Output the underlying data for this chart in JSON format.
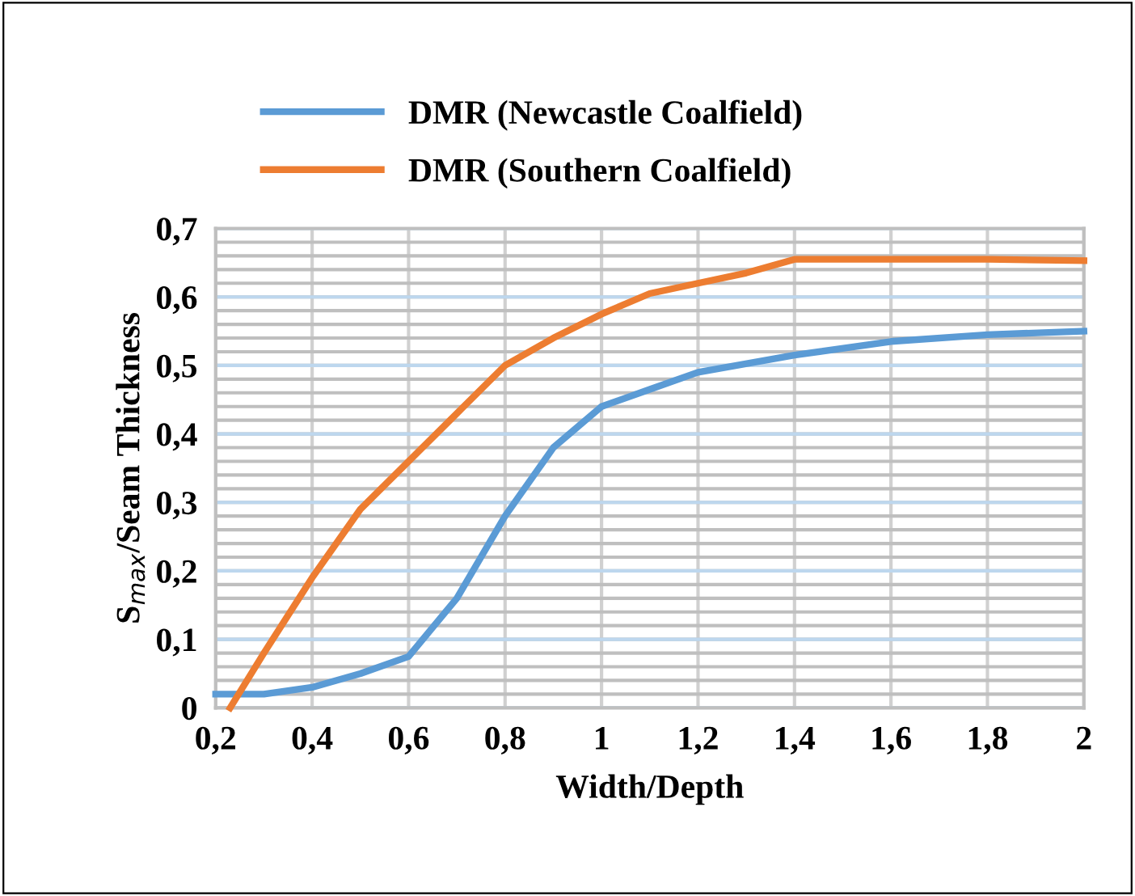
{
  "chart_data": {
    "type": "line",
    "xlabel": "Width/Depth",
    "ylabel": "S$_{max}$/Seam Thickness",
    "legend": "top",
    "grid": true,
    "xlim": [
      0.2,
      2.0
    ],
    "xticks": [
      {
        "value": 0.2,
        "label": "0,2"
      },
      {
        "value": 0.4,
        "label": "0,4"
      },
      {
        "value": 0.6,
        "label": "0,6"
      },
      {
        "value": 0.8,
        "label": "0,8"
      },
      {
        "value": 1.0,
        "label": "1"
      },
      {
        "value": 1.2,
        "label": "1,2"
      },
      {
        "value": 1.4,
        "label": "1,4"
      },
      {
        "value": 1.6,
        "label": "1,6"
      },
      {
        "value": 1.8,
        "label": "1,8"
      },
      {
        "value": 2.0,
        "label": "2"
      }
    ],
    "ylim": [
      0,
      0.7
    ],
    "yticks": [
      {
        "value": 0,
        "label": "0"
      },
      {
        "value": 0.02,
        "label": null
      },
      {
        "value": 0.04,
        "label": null
      },
      {
        "value": 0.06,
        "label": null
      },
      {
        "value": 0.08,
        "label": null
      },
      {
        "value": 0.1,
        "label": "0,1"
      },
      {
        "value": 0.12,
        "label": null
      },
      {
        "value": 0.14,
        "label": null
      },
      {
        "value": 0.16,
        "label": null
      },
      {
        "value": 0.18,
        "label": null
      },
      {
        "value": 0.2,
        "label": "0,2"
      },
      {
        "value": 0.22,
        "label": null
      },
      {
        "value": 0.24,
        "label": null
      },
      {
        "value": 0.26,
        "label": null
      },
      {
        "value": 0.28,
        "label": null
      },
      {
        "value": 0.3,
        "label": "0,3"
      },
      {
        "value": 0.32,
        "label": null
      },
      {
        "value": 0.34,
        "label": null
      },
      {
        "value": 0.36,
        "label": null
      },
      {
        "value": 0.38,
        "label": null
      },
      {
        "value": 0.4,
        "label": "0,4"
      },
      {
        "value": 0.42,
        "label": null
      },
      {
        "value": 0.44,
        "label": null
      },
      {
        "value": 0.46,
        "label": null
      },
      {
        "value": 0.48,
        "label": null
      },
      {
        "value": 0.5,
        "label": "0,5"
      },
      {
        "value": 0.52,
        "label": null
      },
      {
        "value": 0.54,
        "label": null
      },
      {
        "value": 0.56,
        "label": null
      },
      {
        "value": 0.58,
        "label": null
      },
      {
        "value": 0.6,
        "label": "0,6"
      },
      {
        "value": 0.62,
        "label": null
      },
      {
        "value": 0.64,
        "label": null
      },
      {
        "value": 0.66,
        "label": null
      },
      {
        "value": 0.68,
        "label": null
      },
      {
        "value": 0.7,
        "label": "0,7"
      }
    ],
    "series": [
      {
        "name": "DMR (Newcastle Coalfield)",
        "color": "#5b9bd5",
        "x": [
          0.2,
          0.3,
          0.4,
          0.5,
          0.6,
          0.7,
          0.8,
          0.9,
          1.0,
          1.1,
          1.2,
          1.4,
          1.6,
          1.8,
          2.0
        ],
        "values": [
          0.02,
          0.02,
          0.03,
          0.05,
          0.075,
          0.16,
          0.28,
          0.38,
          0.44,
          0.465,
          0.49,
          0.515,
          0.535,
          0.545,
          0.55
        ]
      },
      {
        "name": "DMR (Southern Coalfield)",
        "color": "#ed7d31",
        "x": [
          0.23,
          0.3,
          0.4,
          0.5,
          0.6,
          0.7,
          0.8,
          0.9,
          1.0,
          1.1,
          1.2,
          1.3,
          1.4,
          1.6,
          1.8,
          2.0
        ],
        "values": [
          0,
          0.08,
          0.19,
          0.29,
          0.36,
          0.43,
          0.5,
          0.54,
          0.575,
          0.605,
          0.62,
          0.635,
          0.655,
          0.655,
          0.655,
          0.653
        ]
      }
    ]
  }
}
